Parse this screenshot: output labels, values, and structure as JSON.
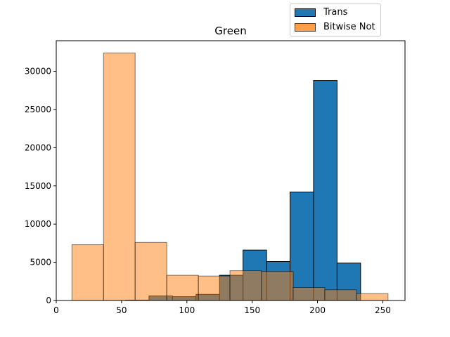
{
  "chart_data": {
    "type": "bar",
    "title": "Green",
    "xlabel": "",
    "ylabel": "",
    "xlim": [
      0,
      267
    ],
    "ylim": [
      0,
      34000
    ],
    "xticks": [
      0,
      50,
      100,
      150,
      200,
      250
    ],
    "yticks": [
      0,
      5000,
      10000,
      15000,
      20000,
      25000,
      30000
    ],
    "xtick_labels": [
      "0",
      "50",
      "100",
      "150",
      "200",
      "250"
    ],
    "ytick_labels": [
      "0",
      "5000",
      "10000",
      "15000",
      "20000",
      "25000",
      "30000"
    ],
    "legend_position": "top-right (above plot)",
    "grid": false,
    "series": [
      {
        "name": "Trans",
        "color": "#1f77b4",
        "edgecolor": "#000000",
        "alpha": 1.0,
        "bin_edges": [
          53,
          71,
          89,
          107,
          125,
          143,
          161,
          179,
          197,
          215,
          233
        ],
        "values": [
          50,
          600,
          500,
          800,
          3300,
          6600,
          5100,
          14200,
          28800,
          4900
        ]
      },
      {
        "name": "Bitwise Not",
        "color": "#ff7f0e",
        "edgecolor": "#000000",
        "alpha": 0.5,
        "bin_edges": [
          12,
          36.2,
          60.4,
          84.6,
          108.8,
          133,
          157.2,
          181.4,
          205.6,
          229.8,
          254
        ],
        "values": [
          7300,
          32400,
          7600,
          3300,
          3200,
          3900,
          3800,
          1700,
          1400,
          900
        ]
      }
    ]
  }
}
